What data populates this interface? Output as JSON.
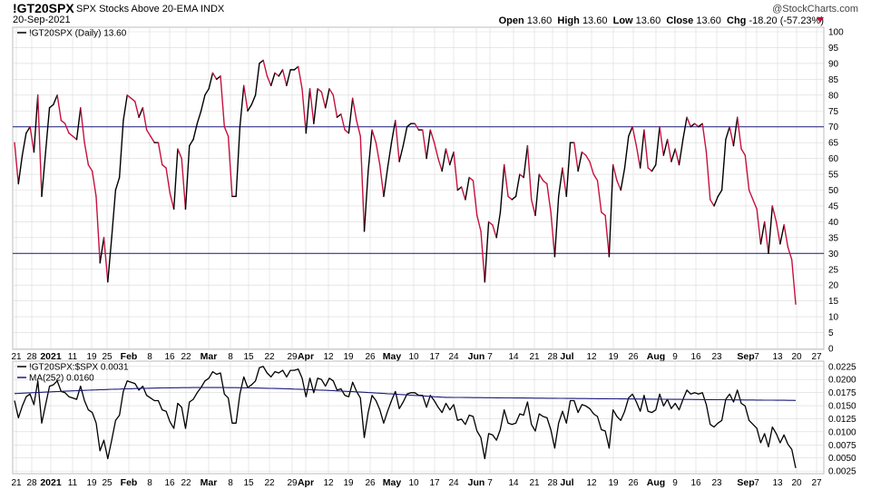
{
  "header": {
    "symbol": "!GT20SPX",
    "description": "SPX Stocks Above 20-EMA INDX",
    "watermark": "@StockCharts.com",
    "date": "20-Sep-2021",
    "open_label": "Open",
    "open": "13.60",
    "high_label": "High",
    "high": "13.60",
    "low_label": "Low",
    "low": "13.60",
    "close_label": "Close",
    "close": "13.60",
    "chg_label": "Chg",
    "chg": "-18.20 (-57.23%)"
  },
  "colors": {
    "up": "#000000",
    "down": "#c8103e",
    "ref_lines": "#1a1a7a",
    "ma": "#1a1a7a",
    "grid": "#d9d9d9"
  },
  "chart_data": [
    {
      "type": "line",
      "legend": "!GT20SPX (Daily) 13.60",
      "ylim": [
        0,
        100
      ],
      "yticks": [
        0,
        5,
        10,
        15,
        20,
        25,
        30,
        35,
        40,
        45,
        50,
        55,
        60,
        65,
        70,
        75,
        80,
        85,
        90,
        95,
        100
      ],
      "reference_lines": [
        30,
        70
      ],
      "x_tick_labels": [
        "21",
        "28",
        "2021",
        "11",
        "19",
        "25",
        "Feb",
        "8",
        "16",
        "22",
        "Mar",
        "8",
        "15",
        "22",
        "29",
        "Apr",
        "12",
        "19",
        "26",
        "May",
        "10",
        "17",
        "24",
        "Jun",
        "7",
        "14",
        "21",
        "28",
        "Jul",
        "12",
        "19",
        "26",
        "Aug",
        "9",
        "16",
        "23",
        "Sep",
        "7",
        "13",
        "20",
        "27"
      ],
      "y": [
        65,
        52,
        61,
        68,
        70,
        62,
        80,
        48,
        62,
        76,
        77,
        80,
        72,
        71,
        68,
        67,
        66,
        76,
        65,
        58,
        56,
        48,
        27,
        35,
        21,
        35,
        50,
        54,
        72,
        80,
        79,
        78,
        73,
        76,
        69,
        67,
        65,
        65,
        58,
        57,
        49,
        44,
        63,
        60,
        44,
        64,
        66,
        71,
        75,
        80,
        82,
        87,
        85,
        86,
        70,
        67,
        48,
        48,
        70,
        83,
        75,
        77,
        80,
        90,
        91,
        86,
        83,
        87,
        86,
        88,
        83,
        88,
        88,
        89,
        82,
        68,
        82,
        71,
        82,
        81,
        76,
        82,
        80,
        73,
        74,
        69,
        68,
        79,
        72,
        67,
        37,
        56,
        69,
        65,
        58,
        48,
        57,
        65,
        72,
        59,
        64,
        70,
        71,
        71,
        69,
        69,
        60,
        69,
        65,
        60,
        56,
        63,
        58,
        62,
        50,
        51,
        47,
        54,
        53,
        42,
        37,
        21,
        40,
        39,
        35,
        43,
        58,
        48,
        47,
        48,
        55,
        54,
        64,
        47,
        42,
        55,
        53,
        52,
        43,
        29,
        48,
        57,
        48,
        65,
        65,
        56,
        62,
        61,
        59,
        55,
        53,
        43,
        42,
        29,
        58,
        53,
        50,
        57,
        67,
        70,
        64,
        57,
        69,
        57,
        56,
        58,
        70,
        61,
        66,
        59,
        63,
        58,
        66,
        73,
        70,
        71,
        70,
        71,
        62,
        47,
        45,
        48,
        50,
        66,
        70,
        64,
        73,
        63,
        61,
        50,
        47,
        44,
        33,
        40,
        30,
        45,
        40,
        33,
        39,
        32,
        28,
        14
      ]
    },
    {
      "type": "line",
      "legend_ratio": "!GT20SPX:$SPX 0.0031",
      "legend_ma": "MA(252) 0.0160",
      "ylim": [
        0.002,
        0.0235
      ],
      "yticks": [
        0.0025,
        0.005,
        0.0075,
        0.01,
        0.0125,
        0.015,
        0.0175,
        0.02,
        0.0225
      ],
      "ytick_labels": [
        "0.0025",
        "0.0050",
        "0.0075",
        "0.0100",
        "0.0125",
        "0.0150",
        "0.0175",
        "0.0200",
        "0.0225"
      ],
      "x_tick_labels": [
        "21",
        "28",
        "2021",
        "11",
        "19",
        "25",
        "Feb",
        "8",
        "16",
        "22",
        "Mar",
        "8",
        "15",
        "22",
        "29",
        "Apr",
        "12",
        "19",
        "26",
        "May",
        "10",
        "17",
        "24",
        "Jun",
        "7",
        "14",
        "21",
        "28",
        "Jul",
        "12",
        "19",
        "26",
        "Aug",
        "9",
        "16",
        "23",
        "Sep",
        "7",
        "13",
        "20",
        "27"
      ],
      "ma_start": 0.0173,
      "ma_end": 0.016
    }
  ]
}
